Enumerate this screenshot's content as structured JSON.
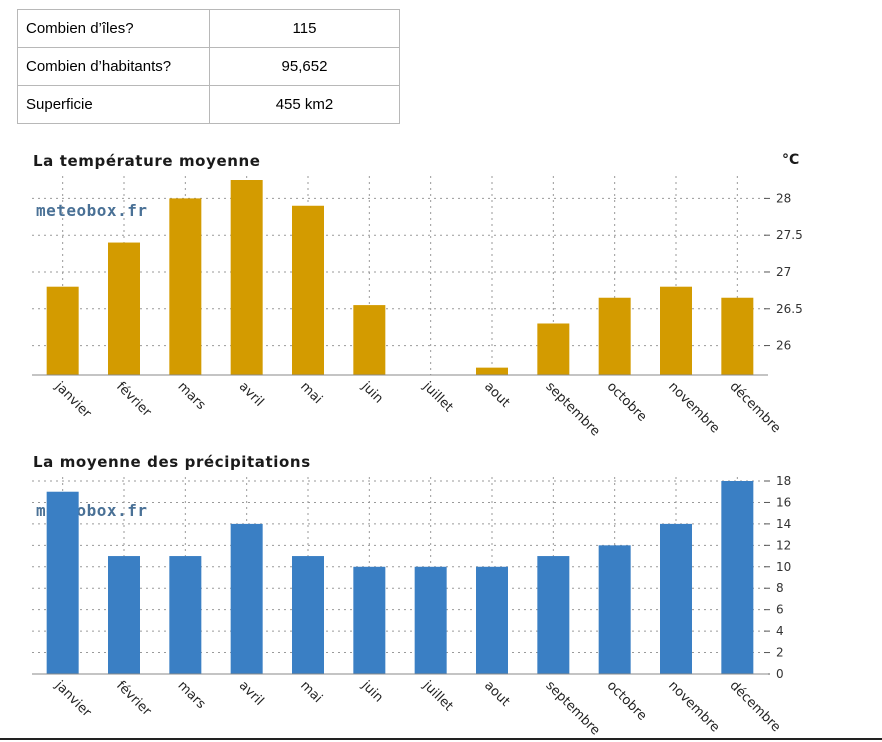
{
  "facts": [
    {
      "label": "Combien d’îles?",
      "value": "115"
    },
    {
      "label": "Combien d’habitants?",
      "value": "95,652"
    },
    {
      "label": "Superficie",
      "value": "455 km2"
    }
  ],
  "watermark": "meteobox.fr",
  "colors": {
    "temperature": "#d39b00",
    "precipitation": "#3a7fc4"
  },
  "chart_data": [
    {
      "type": "bar",
      "title": "La température moyenne",
      "unit": "°C",
      "categories": [
        "janvier",
        "février",
        "mars",
        "avril",
        "mai",
        "juin",
        "juillet",
        "aout",
        "septembre",
        "octobre",
        "novembre",
        "décembre"
      ],
      "values": [
        26.8,
        27.4,
        28.0,
        28.25,
        27.9,
        26.55,
        25.5,
        25.7,
        26.3,
        26.65,
        26.8,
        26.65
      ],
      "ylim": [
        25.6,
        28.25
      ],
      "yticks": [
        26,
        26.5,
        27,
        27.5,
        28
      ],
      "ytick_labels": [
        "26",
        "26.5",
        "27",
        "27.5",
        "28"
      ],
      "grid": true
    },
    {
      "type": "bar",
      "title": "La moyenne des précipitations",
      "categories": [
        "janvier",
        "février",
        "mars",
        "avril",
        "mai",
        "juin",
        "juillet",
        "aout",
        "septembre",
        "octobre",
        "novembre",
        "décembre"
      ],
      "values": [
        17,
        11,
        11,
        14,
        11,
        10,
        10,
        10,
        11,
        12,
        14,
        18
      ],
      "ylim": [
        0,
        18
      ],
      "yticks": [
        0,
        2,
        4,
        6,
        8,
        10,
        12,
        14,
        16,
        18
      ],
      "ytick_labels": [
        "0",
        "2",
        "4",
        "6",
        "8",
        "10",
        "12",
        "14",
        "16",
        "18"
      ],
      "grid": true
    }
  ]
}
